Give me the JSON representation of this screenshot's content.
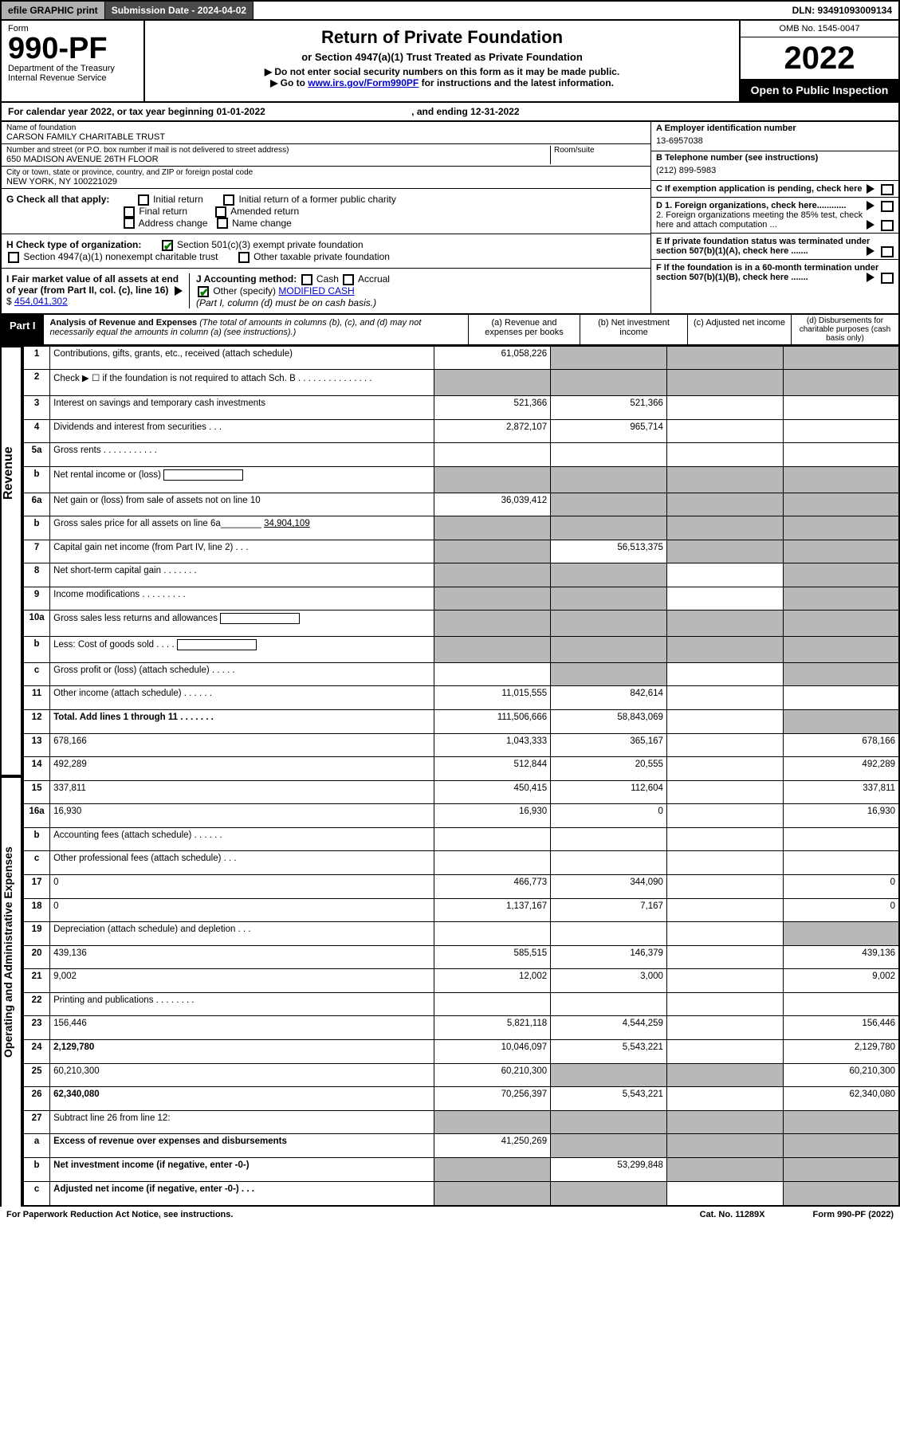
{
  "topbar": {
    "efile": "efile GRAPHIC print",
    "subdate_label": "Submission Date - 2024-04-02",
    "dln": "DLN: 93491093009134"
  },
  "header": {
    "form": "Form",
    "num": "990-PF",
    "dept": "Department of the Treasury",
    "irs": "Internal Revenue Service",
    "title": "Return of Private Foundation",
    "subtitle": "or Section 4947(a)(1) Trust Treated as Private Foundation",
    "note1": "▶ Do not enter social security numbers on this form as it may be made public.",
    "note2": "▶ Go to ",
    "note2_link": "www.irs.gov/Form990PF",
    "note2_after": " for instructions and the latest information.",
    "omb": "OMB No. 1545-0047",
    "year": "2022",
    "open": "Open to Public Inspection"
  },
  "calyear": {
    "pre": "For calendar year 2022, or tax year beginning 01-01-2022",
    "end": ", and ending 12-31-2022"
  },
  "org": {
    "name_lbl": "Name of foundation",
    "name": "CARSON FAMILY CHARITABLE TRUST",
    "addr_lbl": "Number and street (or P.O. box number if mail is not delivered to street address)",
    "addr": "650 MADISON AVENUE 26TH FLOOR",
    "room_lbl": "Room/suite",
    "city_lbl": "City or town, state or province, country, and ZIP or foreign postal code",
    "city": "NEW YORK, NY  100221029",
    "ein_lbl": "A Employer identification number",
    "ein": "13-6957038",
    "tel_lbl": "B Telephone number (see instructions)",
    "tel": "(212) 899-5983",
    "c": "C If exemption application is pending, check here",
    "d1": "D 1. Foreign organizations, check here............",
    "d2": "2. Foreign organizations meeting the 85% test, check here and attach computation ...",
    "e": "E  If private foundation status was terminated under section 507(b)(1)(A), check here .......",
    "f": "F  If the foundation is in a 60-month termination under section 507(b)(1)(B), check here .......",
    "g": "G Check all that apply:",
    "g1": "Initial return",
    "g2": "Initial return of a former public charity",
    "g3": "Final return",
    "g4": "Amended return",
    "g5": "Address change",
    "g6": "Name change",
    "h": "H Check type of organization:",
    "h1": "Section 501(c)(3) exempt private foundation",
    "h2": "Section 4947(a)(1) nonexempt charitable trust",
    "h3": "Other taxable private foundation",
    "i": "I Fair market value of all assets at end of year (from Part II, col. (c), line 16)",
    "i_amt": "454,041,302",
    "j": "J Accounting method:",
    "j1": "Cash",
    "j2": "Accrual",
    "j3": "Other (specify)",
    "j3_val": "MODIFIED CASH",
    "j_note": "(Part I, column (d) must be on cash basis.)"
  },
  "part1": {
    "label": "Part I",
    "title": "Analysis of Revenue and Expenses",
    "note": "(The total of amounts in columns (b), (c), and (d) may not necessarily equal the amounts in column (a) (see instructions).)",
    "col_a": "(a)   Revenue and expenses per books",
    "col_b": "(b)   Net investment income",
    "col_c": "(c)   Adjusted net income",
    "col_d": "(d)   Disbursements for charitable purposes (cash basis only)"
  },
  "sections": {
    "revenue": "Revenue",
    "expenses": "Operating and Administrative Expenses"
  },
  "rows": [
    {
      "n": "1",
      "d": "Contributions, gifts, grants, etc., received (attach schedule)",
      "a": "61,058,226",
      "shade": [
        "b",
        "c",
        "d"
      ]
    },
    {
      "n": "2",
      "d": "Check ▶ ☐ if the foundation is not required to attach Sch. B    .   .   .   .   .   .   .   .   .   .   .   .   .   .   .",
      "shade": [
        "a",
        "b",
        "c",
        "d"
      ]
    },
    {
      "n": "3",
      "d": "Interest on savings and temporary cash investments",
      "a": "521,366",
      "b": "521,366"
    },
    {
      "n": "4",
      "d": "Dividends and interest from securities    .   .   .",
      "a": "2,872,107",
      "b": "965,714"
    },
    {
      "n": "5a",
      "d": "Gross rents    .   .   .   .   .   .   .   .   .   .   ."
    },
    {
      "n": "b",
      "d": "Net rental income or (loss)",
      "tail": true,
      "shade": [
        "a",
        "b",
        "c",
        "d"
      ]
    },
    {
      "n": "6a",
      "d": "Net gain or (loss) from sale of assets not on line 10",
      "a": "36,039,412",
      "shade": [
        "b",
        "c",
        "d"
      ]
    },
    {
      "n": "b",
      "d": "Gross sales price for all assets on line 6a________",
      "tail": "34,904,109",
      "shade": [
        "a",
        "b",
        "c",
        "d"
      ]
    },
    {
      "n": "7",
      "d": "Capital gain net income (from Part IV, line 2)   .   .   .",
      "b": "56,513,375",
      "shade": [
        "a",
        "c",
        "d"
      ]
    },
    {
      "n": "8",
      "d": "Net short-term capital gain   .   .   .   .   .   .   .",
      "shade": [
        "a",
        "b",
        "d"
      ]
    },
    {
      "n": "9",
      "d": "Income modifications  .   .   .   .   .   .   .   .   .",
      "shade": [
        "a",
        "b",
        "d"
      ]
    },
    {
      "n": "10a",
      "d": "Gross sales less returns and allowances",
      "tail": true,
      "shade": [
        "a",
        "b",
        "c",
        "d"
      ]
    },
    {
      "n": "b",
      "d": "Less: Cost of goods sold    .   .   .   .",
      "tail": true,
      "shade": [
        "a",
        "b",
        "c",
        "d"
      ]
    },
    {
      "n": "c",
      "d": "Gross profit or (loss) (attach schedule)    .   .   .   .   .",
      "shade": [
        "b",
        "d"
      ]
    },
    {
      "n": "11",
      "d": "Other income (attach schedule)   .   .   .   .   .   .",
      "a": "11,015,555",
      "b": "842,614"
    },
    {
      "n": "12",
      "d": "Total. Add lines 1 through 11   .   .   .   .   .   .   .",
      "a": "111,506,666",
      "b": "58,843,069",
      "bold": true,
      "shade": [
        "d"
      ]
    },
    {
      "n": "13",
      "d": "678,166",
      "a": "1,043,333",
      "b": "365,167",
      "sec": "exp"
    },
    {
      "n": "14",
      "d": "492,289",
      "a": "512,844",
      "b": "20,555"
    },
    {
      "n": "15",
      "d": "337,811",
      "a": "450,415",
      "b": "112,604"
    },
    {
      "n": "16a",
      "d": "16,930",
      "a": "16,930",
      "b": "0"
    },
    {
      "n": "b",
      "d": "Accounting fees (attach schedule)  .   .   .   .   .   ."
    },
    {
      "n": "c",
      "d": "Other professional fees (attach schedule)    .   .   ."
    },
    {
      "n": "17",
      "d": "0",
      "a": "466,773",
      "b": "344,090"
    },
    {
      "n": "18",
      "d": "0",
      "a": "1,137,167",
      "b": "7,167"
    },
    {
      "n": "19",
      "d": "Depreciation (attach schedule) and depletion    .   .   .",
      "shade": [
        "d"
      ]
    },
    {
      "n": "20",
      "d": "439,136",
      "a": "585,515",
      "b": "146,379"
    },
    {
      "n": "21",
      "d": "9,002",
      "a": "12,002",
      "b": "3,000"
    },
    {
      "n": "22",
      "d": "Printing and publications  .   .   .   .   .   .   .   ."
    },
    {
      "n": "23",
      "d": "156,446",
      "a": "5,821,118",
      "b": "4,544,259"
    },
    {
      "n": "24",
      "d": "2,129,780",
      "a": "10,046,097",
      "b": "5,543,221",
      "bold": true
    },
    {
      "n": "25",
      "d": "60,210,300",
      "a": "60,210,300",
      "shade": [
        "b",
        "c"
      ]
    },
    {
      "n": "26",
      "d": "62,340,080",
      "a": "70,256,397",
      "b": "5,543,221",
      "bold": true
    },
    {
      "n": "27",
      "d": "Subtract line 26 from line 12:",
      "shade": [
        "a",
        "b",
        "c",
        "d"
      ],
      "sec": "end"
    },
    {
      "n": "a",
      "d": "Excess of revenue over expenses and disbursements",
      "a": "41,250,269",
      "bold": true,
      "shade": [
        "b",
        "c",
        "d"
      ]
    },
    {
      "n": "b",
      "d": "Net investment income (if negative, enter -0-)",
      "b": "53,299,848",
      "bold": true,
      "shade": [
        "a",
        "c",
        "d"
      ]
    },
    {
      "n": "c",
      "d": "Adjusted net income (if negative, enter -0-)   .   .   .",
      "bold": true,
      "shade": [
        "a",
        "b",
        "d"
      ]
    }
  ],
  "footer": {
    "left": "For Paperwork Reduction Act Notice, see instructions.",
    "cat": "Cat. No. 11289X",
    "form": "Form 990-PF (2022)"
  }
}
